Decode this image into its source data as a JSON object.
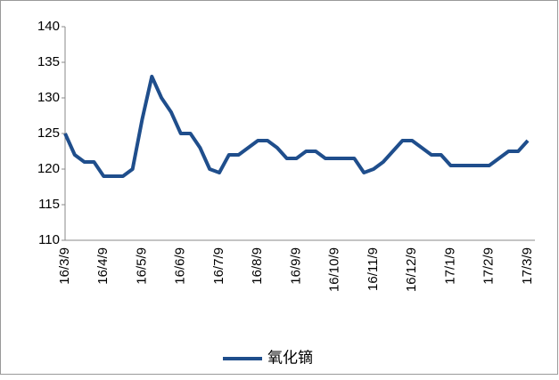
{
  "chart_data": {
    "type": "line",
    "categories": [
      "16/3/9",
      null,
      null,
      null,
      "16/4/9",
      null,
      null,
      null,
      "16/5/9",
      null,
      null,
      null,
      "16/6/9",
      null,
      null,
      null,
      "16/7/9",
      null,
      null,
      null,
      "16/8/9",
      null,
      null,
      null,
      "16/9/9",
      null,
      null,
      null,
      "16/10/9",
      null,
      null,
      null,
      "16/11/9",
      null,
      null,
      null,
      "16/12/9",
      null,
      null,
      null,
      "17/1/9",
      null,
      null,
      null,
      "17/2/9",
      null,
      null,
      null,
      "17/3/9"
    ],
    "series": [
      {
        "name": "氧化镝",
        "color": "#1f4e8c",
        "values": [
          125,
          122,
          121,
          121,
          119,
          119,
          119,
          120,
          127,
          133,
          130,
          128,
          125,
          125,
          123,
          120,
          119.5,
          122,
          122,
          123,
          124,
          124,
          123,
          121.5,
          121.5,
          122.5,
          122.5,
          121.5,
          121.5,
          121.5,
          121.5,
          119.5,
          120,
          121,
          122.5,
          124,
          124,
          123,
          122,
          122,
          120.5,
          120.5,
          120.5,
          120.5,
          120.5,
          121.5,
          122.5,
          122.5,
          124
        ]
      }
    ],
    "ylim": [
      110,
      140
    ],
    "yticks": [
      110,
      115,
      120,
      125,
      130,
      135,
      140
    ],
    "legend": "bottom"
  }
}
